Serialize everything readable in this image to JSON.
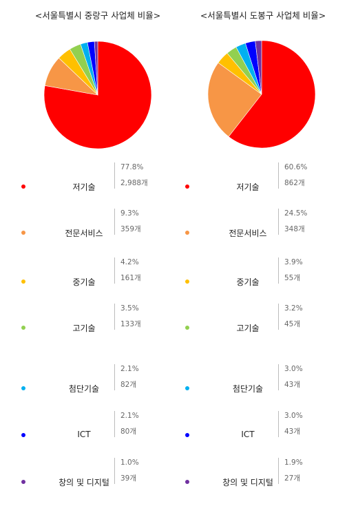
{
  "chart_data": [
    {
      "type": "pie",
      "title": "<서울특별시 중랑구 사업체 비율>",
      "categories": [
        "저기술",
        "전문서비스",
        "중기술",
        "고기술",
        "첨단기술",
        "ICT",
        "창의 및 디지털"
      ],
      "values": [
        77.8,
        9.3,
        4.2,
        3.5,
        2.1,
        2.1,
        1.0
      ],
      "percent_labels": [
        "77.8%",
        "9.3%",
        "4.2%",
        "3.5%",
        "2.1%",
        "2.1%",
        "1.0%"
      ],
      "counts": [
        "2,988개",
        "359개",
        "161개",
        "133개",
        "82개",
        "80개",
        "39개"
      ],
      "colors": [
        "#ff0000",
        "#f79646",
        "#ffc000",
        "#92d050",
        "#00b0f0",
        "#0000ff",
        "#7030a0"
      ]
    },
    {
      "type": "pie",
      "title": "<서울특별시 도봉구 사업체 비율>",
      "categories": [
        "저기술",
        "전문서비스",
        "중기술",
        "고기술",
        "첨단기술",
        "ICT",
        "창의 및 디지털"
      ],
      "values": [
        60.6,
        24.5,
        3.9,
        3.2,
        3.0,
        3.0,
        1.9
      ],
      "percent_labels": [
        "60.6%",
        "24.5%",
        "3.9%",
        "3.2%",
        "3.0%",
        "3.0%",
        "1.9%"
      ],
      "counts": [
        "862개",
        "348개",
        "55개",
        "45개",
        "43개",
        "43개",
        "27개"
      ],
      "colors": [
        "#ff0000",
        "#f79646",
        "#ffc000",
        "#92d050",
        "#00b0f0",
        "#0000ff",
        "#7030a0"
      ]
    }
  ]
}
